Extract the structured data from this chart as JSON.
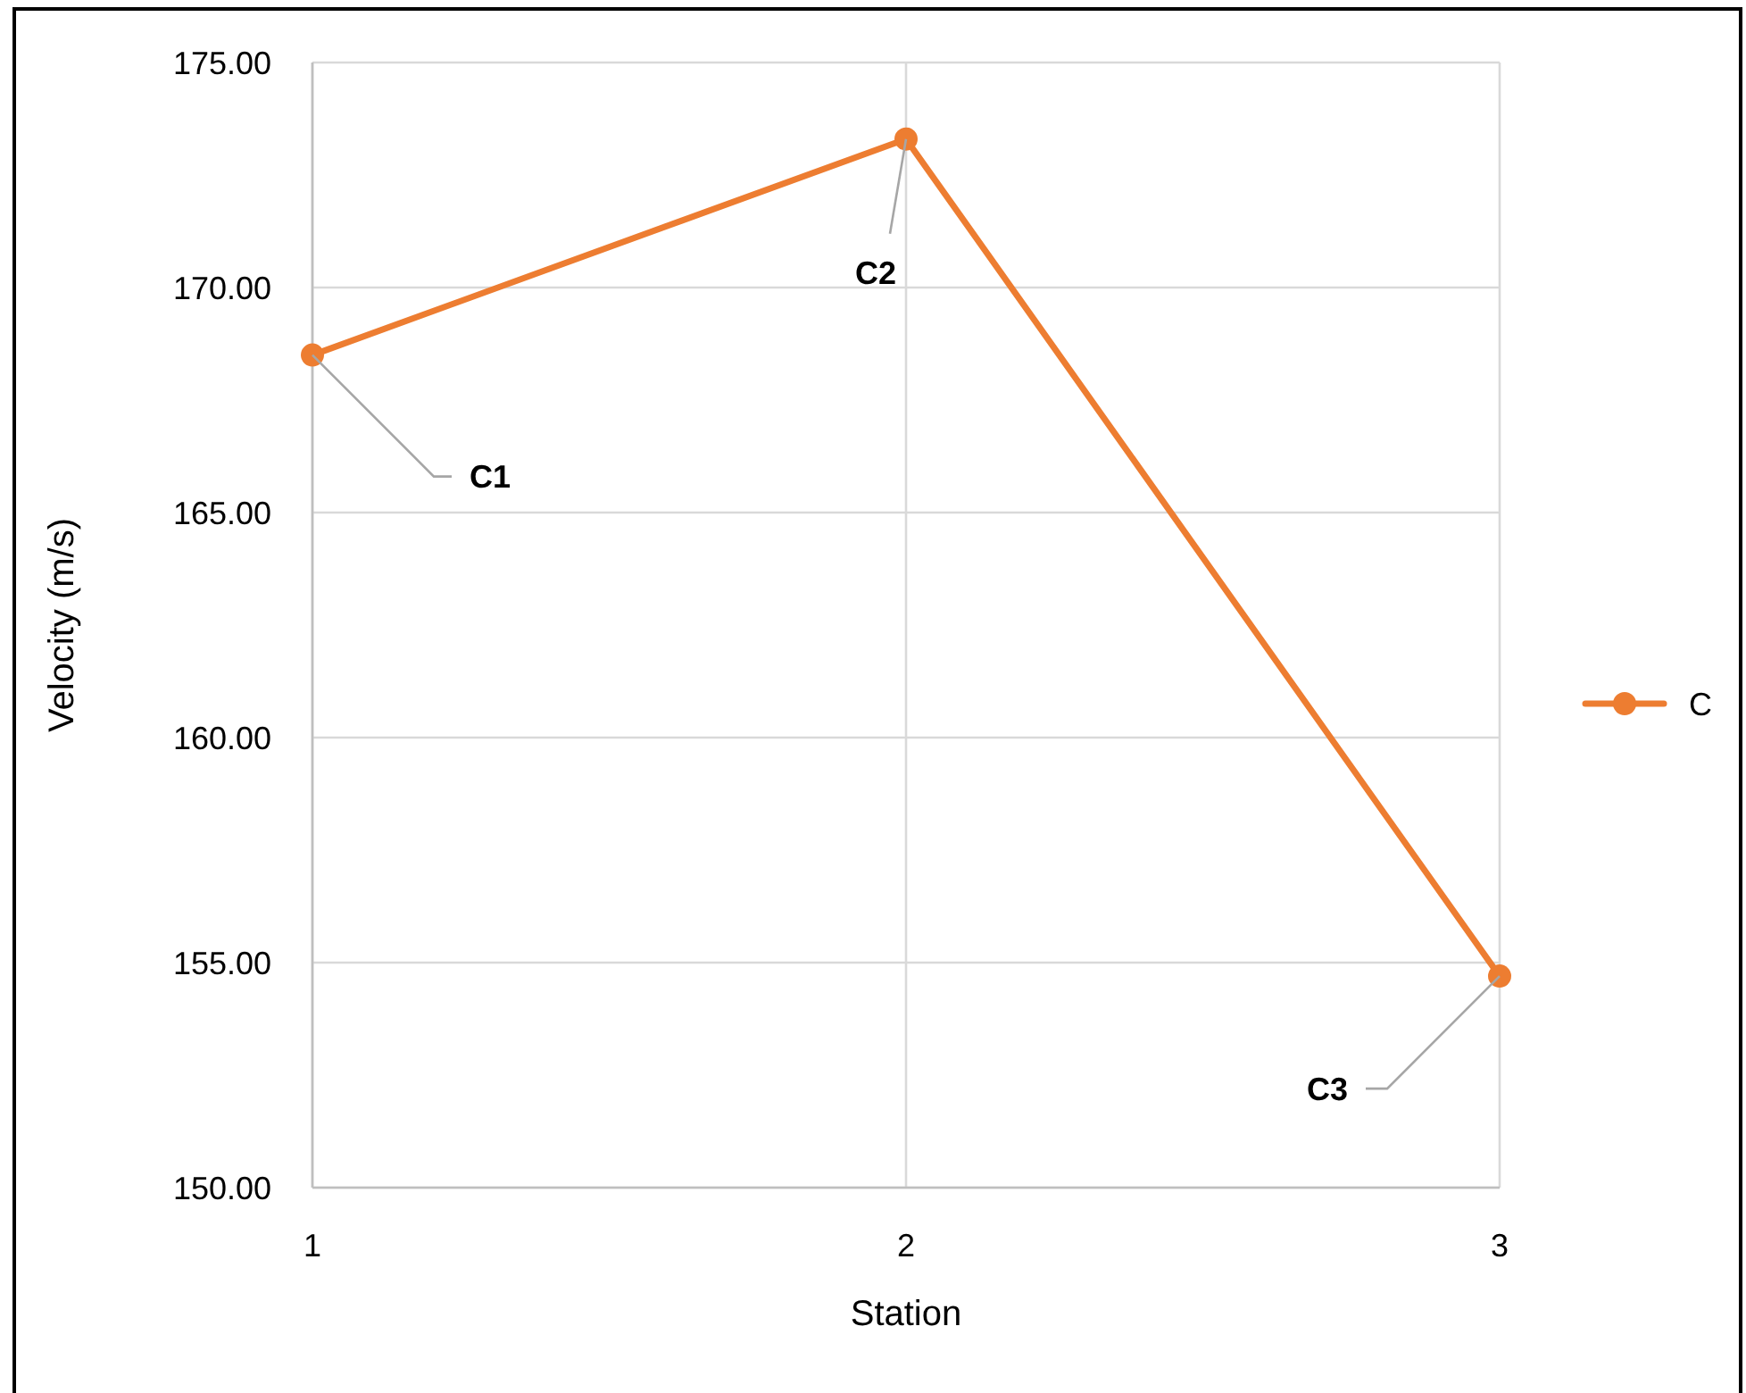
{
  "chart_data": {
    "type": "line",
    "xlabel": "Station",
    "ylabel": "Velocity (m/s)",
    "x": [
      1,
      2,
      3
    ],
    "series": [
      {
        "name": "C",
        "color": "#ed7d31",
        "values": [
          168.5,
          173.3,
          154.7
        ],
        "value_labels": [
          "C1",
          "C2",
          "C3"
        ]
      }
    ],
    "xlim": [
      1,
      3
    ],
    "xticks": [
      1,
      2,
      3
    ],
    "ylim": [
      150,
      175
    ],
    "yticks": [
      {
        "value": 150,
        "label": "150.00"
      },
      {
        "value": 155,
        "label": "155.00"
      },
      {
        "value": 160,
        "label": "160.00"
      },
      {
        "value": 165,
        "label": "165.00"
      },
      {
        "value": 170,
        "label": "170.00"
      },
      {
        "value": 175,
        "label": "175.00"
      }
    ],
    "grid": true,
    "legend": "right",
    "marker": "circle",
    "line_style": "solid"
  }
}
